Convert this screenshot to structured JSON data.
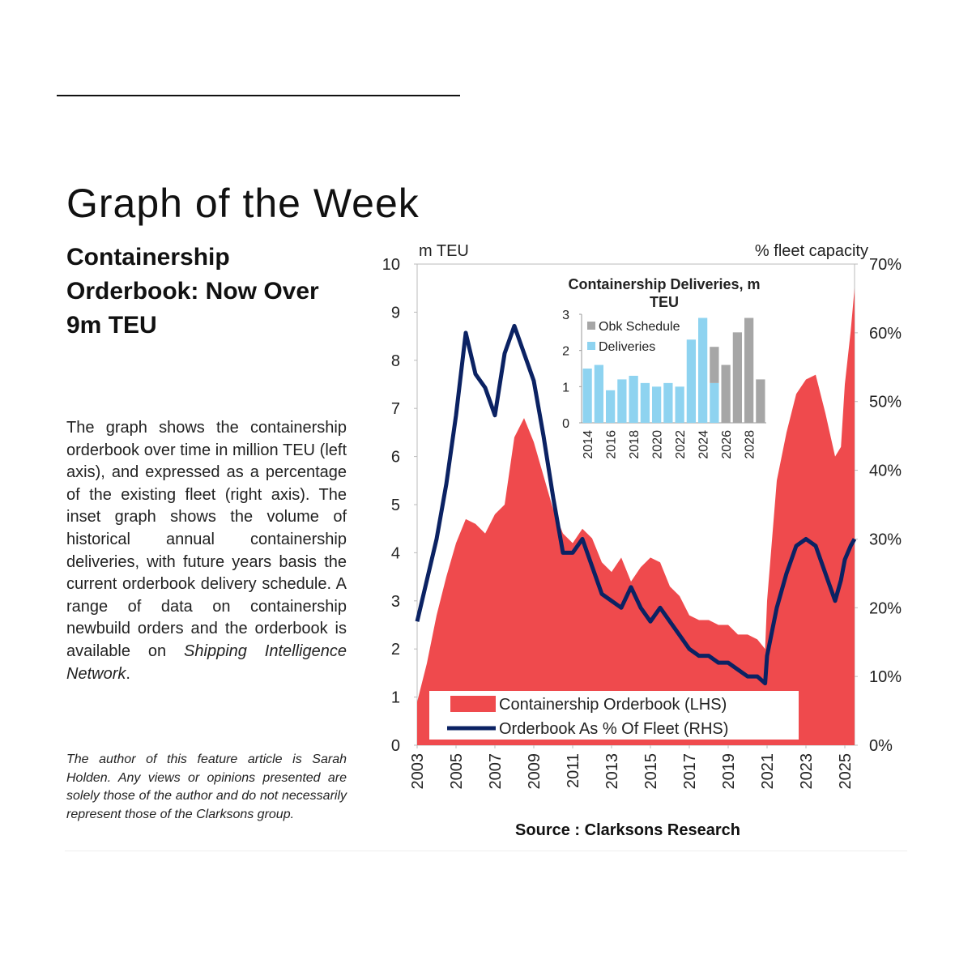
{
  "document": {
    "header": {
      "title": "Graph of the Week"
    },
    "sidebar": {
      "heading": "Containership Orderbook: Now Over 9m TEU",
      "body": [
        "The graph shows the containership orderbook over time in million TEU (left axis), and expressed as a percentage of the existing fleet (right axis). The inset graph shows the volume of historical annual containership deliveries, with future years basis the current orderbook delivery schedule. A range of data on containership newbuild orders and the orderbook is available on",
        "Shipping Intelligence Network",
        "."
      ],
      "note": "The author of this feature article is Sarah Holden. Any views or opinions presented are solely those of the author and do not necessarily represent those of the Clarksons group."
    }
  },
  "chart_data": [
    {
      "type": "area-line",
      "ylabel": "m TEU",
      "y2label": "% fleet capacity",
      "source": "Source : Clarksons Research",
      "x": [
        2003,
        2003.5,
        2004,
        2004.5,
        2005,
        2005.5,
        2006,
        2006.5,
        2007,
        2007.5,
        2008,
        2008.5,
        2009,
        2009.5,
        2010,
        2010.5,
        2011,
        2011.5,
        2012,
        2012.5,
        2013,
        2013.5,
        2014,
        2014.5,
        2015,
        2015.5,
        2016,
        2016.5,
        2017,
        2017.5,
        2018,
        2018.5,
        2019,
        2019.5,
        2020,
        2020.5,
        2020.9,
        2021,
        2021.5,
        2022,
        2022.5,
        2023,
        2023.5,
        2024,
        2024.5,
        2024.8,
        2025,
        2025.3,
        2025.5
      ],
      "series": [
        {
          "name": "Containership Orderbook (LHS)",
          "color": "#ef4a4d",
          "axis": "y",
          "values": [
            0.9,
            1.7,
            2.7,
            3.5,
            4.2,
            4.7,
            4.6,
            4.4,
            4.8,
            5.0,
            6.4,
            6.8,
            6.3,
            5.6,
            4.9,
            4.4,
            4.2,
            4.5,
            4.3,
            3.8,
            3.6,
            3.9,
            3.4,
            3.7,
            3.9,
            3.8,
            3.3,
            3.1,
            2.7,
            2.6,
            2.6,
            2.5,
            2.5,
            2.3,
            2.3,
            2.2,
            2.0,
            3.0,
            5.5,
            6.5,
            7.3,
            7.6,
            7.7,
            6.9,
            6.0,
            6.2,
            7.5,
            8.6,
            9.5
          ]
        },
        {
          "name": "Orderbook As % Of Fleet (RHS)",
          "color": "#0b2263",
          "axis": "y2",
          "values": [
            18,
            24,
            30,
            38,
            48,
            60,
            54,
            52,
            48,
            57,
            61,
            57,
            53,
            45,
            36,
            28,
            28,
            30,
            26,
            22,
            21,
            20,
            23,
            20,
            18,
            20,
            18,
            16,
            14,
            13,
            13,
            12,
            12,
            11,
            10,
            10,
            9,
            13,
            20,
            25,
            29,
            30,
            29,
            25,
            21,
            24,
            27,
            29,
            30
          ]
        }
      ],
      "xlim": [
        2003,
        2025.5
      ],
      "xticks": [
        2003,
        2005,
        2007,
        2009,
        2011,
        2013,
        2015,
        2017,
        2019,
        2021,
        2023,
        2025
      ],
      "ylim": [
        0,
        10
      ],
      "yticks": [
        0,
        1,
        2,
        3,
        4,
        5,
        6,
        7,
        8,
        9,
        10
      ],
      "y2lim": [
        0,
        70
      ],
      "y2ticks": [
        {
          "value": 0,
          "label": "0%"
        },
        {
          "value": 10,
          "label": "10%"
        },
        {
          "value": 20,
          "label": "20%"
        },
        {
          "value": 30,
          "label": "30%"
        },
        {
          "value": 40,
          "label": "40%"
        },
        {
          "value": 50,
          "label": "50%"
        },
        {
          "value": 60,
          "label": "60%"
        },
        {
          "value": 70,
          "label": "70%"
        }
      ],
      "legend": "bottom",
      "grid": false
    },
    {
      "type": "stacked-bar",
      "title": "Containership Deliveries, m TEU",
      "categories": [
        "2014",
        null,
        "2016",
        null,
        "2018",
        null,
        "2020",
        null,
        "2022",
        null,
        "2024",
        null,
        "2026",
        null,
        "2028",
        null
      ],
      "series": [
        {
          "name": "Deliveries",
          "color": "#8ed3f0",
          "values": [
            1.5,
            1.6,
            0.9,
            1.2,
            1.3,
            1.1,
            1.0,
            1.1,
            1.0,
            2.3,
            2.9,
            1.1,
            null,
            null,
            null,
            null
          ]
        },
        {
          "name": "Obk Schedule",
          "color": "#a6a6a6",
          "values": [
            null,
            null,
            null,
            null,
            null,
            null,
            null,
            null,
            null,
            null,
            null,
            1.0,
            1.6,
            2.5,
            2.9,
            1.2
          ]
        }
      ],
      "ylim": [
        0,
        3
      ],
      "yticks": [
        0,
        1,
        2,
        3
      ],
      "legend": "top-left",
      "grid": false
    }
  ]
}
